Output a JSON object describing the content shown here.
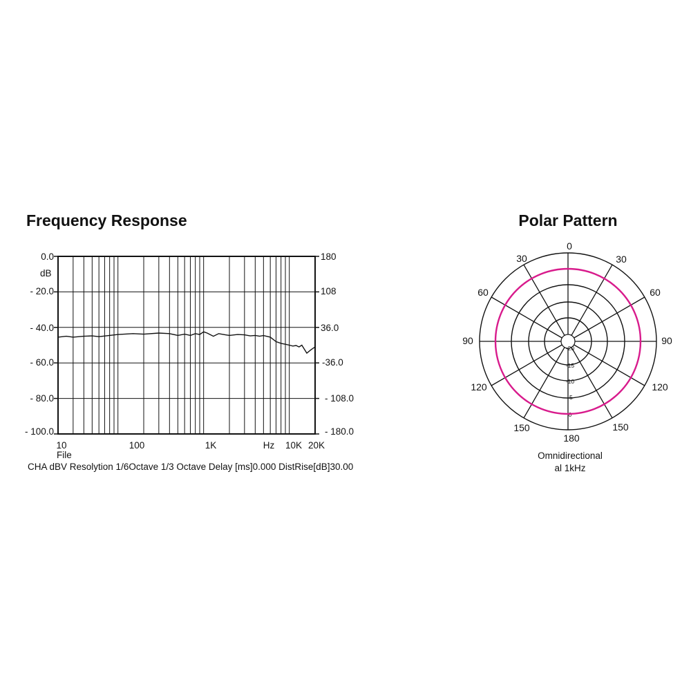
{
  "chart_data": [
    {
      "type": "line",
      "title": "Frequency Response",
      "x_scale": "log",
      "xlim": [
        20,
        20000
      ],
      "ylim": [
        -100,
        0
      ],
      "ylim_right": [
        -180,
        180
      ],
      "grid": true,
      "x_ticks": [
        "10",
        "100",
        "1K",
        "Hz",
        "10K",
        "20K"
      ],
      "x_axis_note": "File",
      "y_ticks_left": [
        "0.0",
        "- 20.0",
        "- 40.0",
        "- 60.0",
        "- 80.0",
        "- 100.0"
      ],
      "y_unit_left": "dB",
      "y_ticks_right": [
        "180",
        "108",
        "36.0",
        "-36.0",
        "- 108.0",
        "- 180.0"
      ],
      "caption": "CHA dBV Resolytion 1/6Octave 1/3 Octave Delay [ms]0.000 DistRise[dB]30.00",
      "series": [
        {
          "x": [
            20,
            25,
            30,
            40,
            50,
            60,
            80,
            100,
            150,
            200,
            300,
            400,
            500,
            600,
            700,
            800,
            900,
            1000,
            1100,
            1300,
            1500,
            1800,
            2000,
            2500,
            3000,
            3500,
            4000,
            4500,
            5000,
            6000,
            7000,
            8000,
            9000,
            10000,
            11000,
            12000,
            13000,
            14000,
            16000,
            18000,
            20000
          ],
          "y": [
            -45.5,
            -45.0,
            -45.5,
            -45.0,
            -44.8,
            -45.2,
            -44.5,
            -44.0,
            -43.5,
            -43.8,
            -43.2,
            -43.5,
            -44.5,
            -43.8,
            -44.5,
            -43.5,
            -44.0,
            -42.5,
            -43.2,
            -45.0,
            -43.5,
            -44.2,
            -44.5,
            -44.0,
            -44.2,
            -44.8,
            -44.5,
            -45.0,
            -44.6,
            -45.5,
            -48.0,
            -49.0,
            -49.5,
            -50.0,
            -50.5,
            -50.2,
            -51.0,
            -50.0,
            -54.5,
            -52.5,
            -51.0
          ]
        }
      ],
      "color": "#111111"
    },
    {
      "type": "polar",
      "title": "Polar Pattern",
      "angle_labels": [
        "0",
        "30",
        "30",
        "60",
        "60",
        "90",
        "90",
        "120",
        "120",
        "150",
        "150",
        "180"
      ],
      "ring_labels": [
        "-20",
        "-15",
        "-10",
        "-5",
        "0"
      ],
      "series": [
        {
          "pattern": "Omnidirectional",
          "level_db": 0,
          "color": "#d81b8c"
        }
      ],
      "caption_line1": "Omnidirectional",
      "caption_line2": "al 1kHz"
    }
  ]
}
